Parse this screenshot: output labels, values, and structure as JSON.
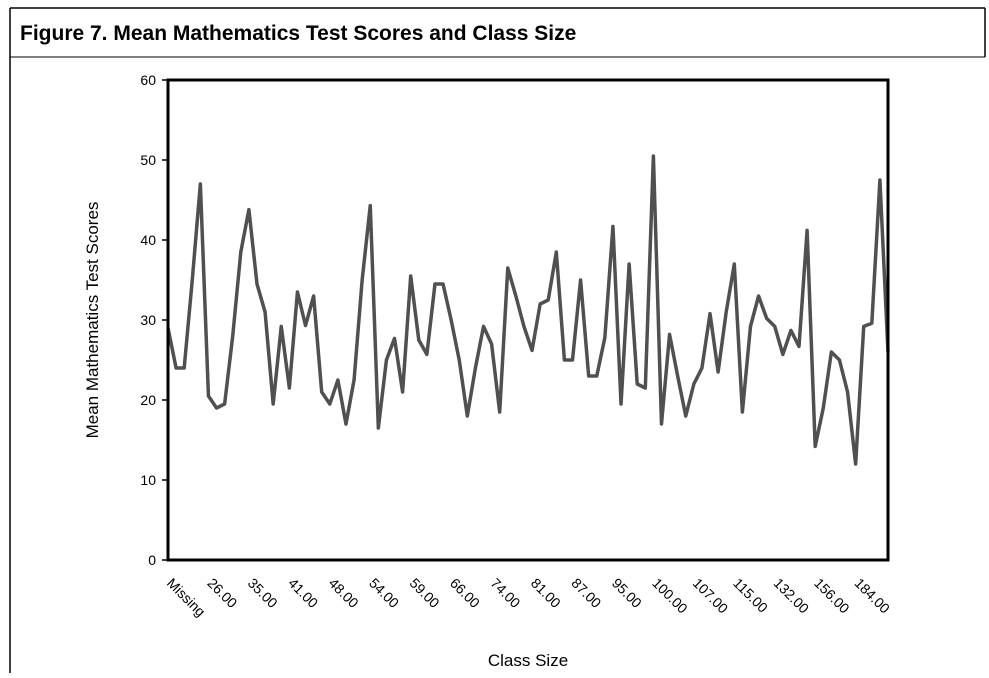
{
  "chart_data": {
    "type": "line",
    "title": "Figure 7.  Mean Mathematics Test Scores and Class Size",
    "x_label": "Class Size",
    "y_label": "Mean Mathematics Test Scores",
    "categories": [
      "Missing",
      null,
      null,
      null,
      null,
      "26.00",
      null,
      null,
      null,
      null,
      "35.00",
      null,
      null,
      null,
      null,
      "41.00",
      null,
      null,
      null,
      null,
      "48.00",
      null,
      null,
      null,
      null,
      "54.00",
      null,
      null,
      null,
      null,
      "59.00",
      null,
      null,
      null,
      null,
      "66.00",
      null,
      null,
      null,
      null,
      "74.00",
      null,
      null,
      null,
      null,
      "81.00",
      null,
      null,
      null,
      null,
      "87.00",
      null,
      null,
      null,
      null,
      "95.00",
      null,
      null,
      null,
      null,
      "100.00",
      null,
      null,
      null,
      null,
      "107.00",
      null,
      null,
      null,
      null,
      "115.00",
      null,
      null,
      null,
      null,
      "132.00",
      null,
      null,
      null,
      null,
      "156.00",
      null,
      null,
      null,
      null,
      "184.00",
      null,
      null,
      null,
      null
    ],
    "series": [
      {
        "name": "Mean Mathematics Test Scores",
        "color": "#505050",
        "values": [
          29,
          24,
          24,
          35,
          47,
          20.5,
          19,
          19.5,
          28,
          38.5,
          43.8,
          34.5,
          31,
          19.5,
          29.2,
          21.5,
          33.5,
          29.3,
          33,
          21,
          19.5,
          22.5,
          17,
          22.5,
          35,
          44.3,
          16.5,
          25,
          27.7,
          21,
          35.5,
          27.5,
          25.7,
          34.5,
          34.5,
          30,
          25,
          18,
          24,
          29.2,
          27,
          18.5,
          36.5,
          33,
          29.2,
          26.2,
          32,
          32.5,
          38.5,
          25,
          25,
          35,
          23,
          23,
          27.8,
          41.7,
          19.5,
          37,
          22,
          21.5,
          50.5,
          17,
          28.2,
          23,
          18,
          22,
          24,
          30.8,
          23.5,
          31,
          37,
          18.5,
          29.2,
          33,
          30.2,
          29.2,
          25.7,
          28.7,
          26.7,
          41.2,
          14.2,
          19,
          26,
          25,
          21,
          12,
          29.2,
          29.6,
          47.5,
          26
        ]
      }
    ],
    "ylim": [
      0,
      60
    ],
    "yticks": [
      0,
      10,
      20,
      30,
      40,
      50,
      60
    ]
  }
}
